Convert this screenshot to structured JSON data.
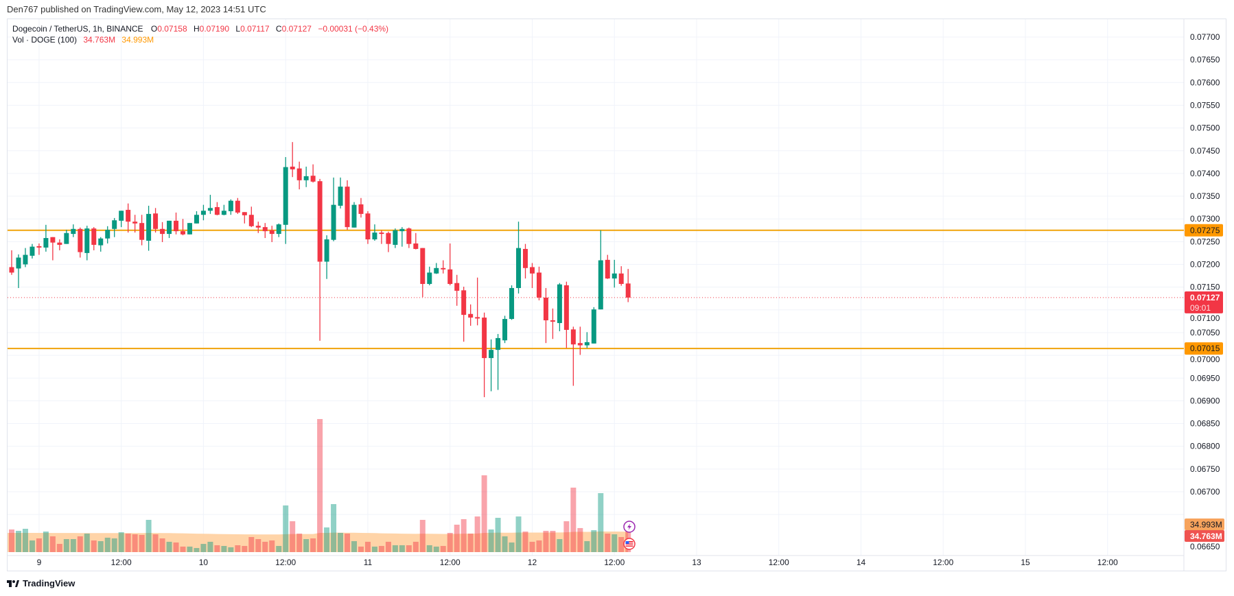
{
  "publisher_line": "Den767 published on TradingView.com, May 12, 2023 14:51 UTC",
  "legend": {
    "symbol": "Dogecoin / TetherUS, 1h, BINANCE",
    "o_label": "O",
    "o": "0.07158",
    "h_label": "H",
    "h": "0.07190",
    "l_label": "L",
    "l": "0.07117",
    "c_label": "C",
    "c": "0.07127",
    "change": "−0.00031 (−0.43%)",
    "vol_label": "Vol · DOGE (100)",
    "vol_value": "34.763M",
    "vol_ma_value": "34.993M"
  },
  "footer": {
    "brand": "TradingView",
    "logo_icon": "tradingview-logo-icon"
  },
  "colors": {
    "up": "#089981",
    "down": "#f23645",
    "level_line": "#f0a30a",
    "vol_ma_fill": "#ffcc99",
    "grid": "#f0f3fa"
  },
  "chart_data": {
    "type": "candlestick",
    "interval": "1h",
    "ylim": [
      0.0662,
      0.0774
    ],
    "grid": true,
    "y_ticks": [
      "0.07700",
      "0.07650",
      "0.07600",
      "0.07550",
      "0.07500",
      "0.07450",
      "0.07400",
      "0.07350",
      "0.07300",
      "0.07250",
      "0.07200",
      "0.07150",
      "0.07100",
      "0.07050",
      "0.07000",
      "0.06950",
      "0.06900",
      "0.06850",
      "0.06800",
      "0.06750",
      "0.06700",
      "0.06650"
    ],
    "x_ticks": [
      {
        "label": "9",
        "time": "2023-05-09 00:00"
      },
      {
        "label": "12:00",
        "time": "2023-05-09 12:00"
      },
      {
        "label": "10",
        "time": "2023-05-10 00:00"
      },
      {
        "label": "12:00",
        "time": "2023-05-10 12:00"
      },
      {
        "label": "11",
        "time": "2023-05-11 00:00"
      },
      {
        "label": "12:00",
        "time": "2023-05-11 12:00"
      },
      {
        "label": "12",
        "time": "2023-05-12 00:00"
      },
      {
        "label": "12:00",
        "time": "2023-05-12 12:00"
      },
      {
        "label": "13",
        "time": "2023-05-13 00:00"
      },
      {
        "label": "12:00",
        "time": "2023-05-13 12:00"
      },
      {
        "label": "14",
        "time": "2023-05-14 00:00"
      },
      {
        "label": "12:00",
        "time": "2023-05-14 12:00"
      },
      {
        "label": "15",
        "time": "2023-05-15 00:00"
      },
      {
        "label": "12:00",
        "time": "2023-05-15 12:00"
      }
    ],
    "horizontal_levels": [
      {
        "price": 0.07275,
        "label": "0.07275"
      },
      {
        "price": 0.07015,
        "label": "0.07015"
      }
    ],
    "last_price": {
      "price": 0.07127,
      "label": "0.07127",
      "countdown": "09:01"
    },
    "volume_labels": {
      "ma": "34.993M",
      "volume": "34.763M"
    },
    "columns": [
      "time",
      "open",
      "high",
      "low",
      "close",
      "volume_m",
      "vol_ma_m"
    ],
    "candles": [
      [
        "2023-05-08 20:00",
        0.07194,
        0.07231,
        0.07177,
        0.07182,
        38.6,
        32.8
      ],
      [
        "2023-05-08 21:00",
        0.07191,
        0.07222,
        0.07148,
        0.07215,
        36.3,
        32.8
      ],
      [
        "2023-05-08 22:00",
        0.072,
        0.07236,
        0.07194,
        0.07221,
        39.8,
        32.8
      ],
      [
        "2023-05-08 23:00",
        0.07219,
        0.07245,
        0.07213,
        0.07239,
        19.9,
        32.7
      ],
      [
        "2023-05-09 00:00",
        0.0724,
        0.07246,
        0.07221,
        0.07237,
        23.4,
        32.7
      ],
      [
        "2023-05-09 01:00",
        0.07237,
        0.07287,
        0.07228,
        0.07258,
        35.1,
        32.7
      ],
      [
        "2023-05-09 02:00",
        0.0726,
        0.0726,
        0.07209,
        0.07248,
        26.9,
        32.6
      ],
      [
        "2023-05-09 03:00",
        0.07248,
        0.07255,
        0.07231,
        0.07243,
        14.0,
        32.6
      ],
      [
        "2023-05-09 04:00",
        0.07245,
        0.07276,
        0.07245,
        0.07269,
        22.2,
        32.6
      ],
      [
        "2023-05-09 05:00",
        0.07267,
        0.07288,
        0.0726,
        0.07278,
        22.2,
        32.6
      ],
      [
        "2023-05-09 06:00",
        0.07278,
        0.07281,
        0.07215,
        0.07227,
        26.9,
        32.5
      ],
      [
        "2023-05-09 07:00",
        0.07225,
        0.07285,
        0.07209,
        0.07279,
        31.6,
        32.5
      ],
      [
        "2023-05-09 08:00",
        0.07279,
        0.07282,
        0.07231,
        0.07243,
        19.9,
        32.5
      ],
      [
        "2023-05-09 09:00",
        0.07242,
        0.0726,
        0.07228,
        0.07257,
        18.7,
        32.5
      ],
      [
        "2023-05-09 10:00",
        0.07257,
        0.07284,
        0.07246,
        0.07276,
        24.6,
        32.4
      ],
      [
        "2023-05-09 11:00",
        0.07278,
        0.07302,
        0.0726,
        0.07297,
        23.4,
        32.4
      ],
      [
        "2023-05-09 12:00",
        0.07296,
        0.07318,
        0.07282,
        0.07318,
        33.9,
        32.4
      ],
      [
        "2023-05-09 13:00",
        0.0732,
        0.07334,
        0.0727,
        0.07294,
        31.6,
        32.4
      ],
      [
        "2023-05-09 14:00",
        0.07294,
        0.07309,
        0.0727,
        0.0729,
        30.4,
        32.4
      ],
      [
        "2023-05-09 15:00",
        0.07291,
        0.07309,
        0.07242,
        0.07254,
        29.3,
        32.4
      ],
      [
        "2023-05-09 16:00",
        0.07252,
        0.07329,
        0.0723,
        0.07311,
        55.0,
        32.6
      ],
      [
        "2023-05-09 17:00",
        0.07312,
        0.07324,
        0.0727,
        0.07278,
        30.4,
        32.6
      ],
      [
        "2023-05-09 18:00",
        0.07278,
        0.07293,
        0.07249,
        0.07267,
        23.4,
        32.5
      ],
      [
        "2023-05-09 19:00",
        0.07267,
        0.07296,
        0.07258,
        0.07296,
        17.6,
        32.4
      ],
      [
        "2023-05-09 20:00",
        0.07296,
        0.07314,
        0.07266,
        0.07273,
        16.4,
        32.2
      ],
      [
        "2023-05-09 21:00",
        0.07273,
        0.073,
        0.07264,
        0.07266,
        9.4,
        32.0
      ],
      [
        "2023-05-09 22:00",
        0.07266,
        0.07291,
        0.07266,
        0.07291,
        9.4,
        31.8
      ],
      [
        "2023-05-09 23:00",
        0.0729,
        0.07317,
        0.0729,
        0.07309,
        7.0,
        31.5
      ],
      [
        "2023-05-10 00:00",
        0.07309,
        0.07331,
        0.07297,
        0.07318,
        14.0,
        31.3
      ],
      [
        "2023-05-10 01:00",
        0.07318,
        0.07353,
        0.07311,
        0.07324,
        17.6,
        31.1
      ],
      [
        "2023-05-10 02:00",
        0.07326,
        0.07337,
        0.07308,
        0.07309,
        11.7,
        30.9
      ],
      [
        "2023-05-10 03:00",
        0.07309,
        0.07331,
        0.07308,
        0.07318,
        10.5,
        30.7
      ],
      [
        "2023-05-10 04:00",
        0.07317,
        0.07343,
        0.07309,
        0.0734,
        8.2,
        30.5
      ],
      [
        "2023-05-10 05:00",
        0.0734,
        0.07346,
        0.07311,
        0.07314,
        11.7,
        30.4
      ],
      [
        "2023-05-10 06:00",
        0.07315,
        0.07315,
        0.0729,
        0.07308,
        10.5,
        30.3
      ],
      [
        "2023-05-10 07:00",
        0.07309,
        0.07327,
        0.07282,
        0.07284,
        25.7,
        30.3
      ],
      [
        "2023-05-10 08:00",
        0.07285,
        0.07294,
        0.07269,
        0.07281,
        22.2,
        30.2
      ],
      [
        "2023-05-10 09:00",
        0.07282,
        0.07291,
        0.07258,
        0.07273,
        17.6,
        30.2
      ],
      [
        "2023-05-10 10:00",
        0.07275,
        0.07285,
        0.07249,
        0.07267,
        19.9,
        30.2
      ],
      [
        "2023-05-10 11:00",
        0.07267,
        0.0729,
        0.0726,
        0.07288,
        10.5,
        30.1
      ],
      [
        "2023-05-10 12:00",
        0.07287,
        0.07436,
        0.07245,
        0.07414,
        79.6,
        30.6
      ],
      [
        "2023-05-10 13:00",
        0.07415,
        0.07469,
        0.07392,
        0.07409,
        52.7,
        30.8
      ],
      [
        "2023-05-10 14:00",
        0.07411,
        0.07426,
        0.07365,
        0.07385,
        31.6,
        30.8
      ],
      [
        "2023-05-10 15:00",
        0.07385,
        0.07415,
        0.0737,
        0.07394,
        22.2,
        30.8
      ],
      [
        "2023-05-10 16:00",
        0.07395,
        0.0742,
        0.0738,
        0.07382,
        23.4,
        30.8
      ],
      [
        "2023-05-10 17:00",
        0.07383,
        0.07388,
        0.07032,
        0.07206,
        227.0,
        32.7
      ],
      [
        "2023-05-10 18:00",
        0.07206,
        0.07264,
        0.07168,
        0.07255,
        42.1,
        32.8
      ],
      [
        "2023-05-10 19:00",
        0.07254,
        0.07391,
        0.07251,
        0.07331,
        81.9,
        33.2
      ],
      [
        "2023-05-10 20:00",
        0.07329,
        0.07391,
        0.07323,
        0.07371,
        32.8,
        33.2
      ],
      [
        "2023-05-10 21:00",
        0.07371,
        0.07385,
        0.07276,
        0.07282,
        31.6,
        33.1
      ],
      [
        "2023-05-10 22:00",
        0.07281,
        0.07337,
        0.07281,
        0.07331,
        18.7,
        33.0
      ],
      [
        "2023-05-10 23:00",
        0.07332,
        0.07346,
        0.07303,
        0.07311,
        9.4,
        32.8
      ],
      [
        "2023-05-11 00:00",
        0.07312,
        0.07317,
        0.07245,
        0.07255,
        17.6,
        32.6
      ],
      [
        "2023-05-11 01:00",
        0.07255,
        0.07288,
        0.07252,
        0.0727,
        9.4,
        32.4
      ],
      [
        "2023-05-11 02:00",
        0.0727,
        0.07275,
        0.07245,
        0.07267,
        10.5,
        32.1
      ],
      [
        "2023-05-11 03:00",
        0.07269,
        0.07272,
        0.07227,
        0.07245,
        17.6,
        31.9
      ],
      [
        "2023-05-11 04:00",
        0.07243,
        0.07279,
        0.07236,
        0.07275,
        11.7,
        31.7
      ],
      [
        "2023-05-11 05:00",
        0.07273,
        0.07282,
        0.07239,
        0.07278,
        11.7,
        31.5
      ],
      [
        "2023-05-11 06:00",
        0.07279,
        0.07281,
        0.07236,
        0.07245,
        11.7,
        31.3
      ],
      [
        "2023-05-11 07:00",
        0.07246,
        0.07269,
        0.07233,
        0.07234,
        17.6,
        31.2
      ],
      [
        "2023-05-11 08:00",
        0.07236,
        0.07236,
        0.07128,
        0.07157,
        55.0,
        31.4
      ],
      [
        "2023-05-11 09:00",
        0.07157,
        0.07195,
        0.07154,
        0.07182,
        11.7,
        31.3
      ],
      [
        "2023-05-11 10:00",
        0.0718,
        0.07203,
        0.07179,
        0.07192,
        9.4,
        31.1
      ],
      [
        "2023-05-11 11:00",
        0.07192,
        0.07209,
        0.0718,
        0.07189,
        10.5,
        31.0
      ],
      [
        "2023-05-11 12:00",
        0.07189,
        0.07246,
        0.07154,
        0.07157,
        32.8,
        31.0
      ],
      [
        "2023-05-11 13:00",
        0.07159,
        0.07177,
        0.07109,
        0.07142,
        46.8,
        31.2
      ],
      [
        "2023-05-11 14:00",
        0.07143,
        0.07151,
        0.0703,
        0.07089,
        56.2,
        31.5
      ],
      [
        "2023-05-11 15:00",
        0.07091,
        0.07112,
        0.07065,
        0.07083,
        31.6,
        31.5
      ],
      [
        "2023-05-11 16:00",
        0.07084,
        0.07171,
        0.07066,
        0.07081,
        60.8,
        31.8
      ],
      [
        "2023-05-11 17:00",
        0.07083,
        0.07094,
        0.06908,
        0.06994,
        131.0,
        32.8
      ],
      [
        "2023-05-11 18:00",
        0.06994,
        0.07035,
        0.06921,
        0.07012,
        38.6,
        32.9
      ],
      [
        "2023-05-11 19:00",
        0.07012,
        0.07047,
        0.06924,
        0.07038,
        58.5,
        33.2
      ],
      [
        "2023-05-11 20:00",
        0.07033,
        0.07087,
        0.07027,
        0.0708,
        26.9,
        33.1
      ],
      [
        "2023-05-11 21:00",
        0.0708,
        0.07154,
        0.07078,
        0.07148,
        16.4,
        33.0
      ],
      [
        "2023-05-11 22:00",
        0.07148,
        0.07294,
        0.07136,
        0.07236,
        60.8,
        33.3
      ],
      [
        "2023-05-11 23:00",
        0.07234,
        0.07245,
        0.07169,
        0.07192,
        35.1,
        33.4
      ],
      [
        "2023-05-12 00:00",
        0.07194,
        0.07203,
        0.07148,
        0.0718,
        17.6,
        33.3
      ],
      [
        "2023-05-12 01:00",
        0.07182,
        0.07195,
        0.07121,
        0.07127,
        19.9,
        33.3
      ],
      [
        "2023-05-12 02:00",
        0.07127,
        0.07148,
        0.07027,
        0.07077,
        36.3,
        33.4
      ],
      [
        "2023-05-12 03:00",
        0.07077,
        0.07103,
        0.07036,
        0.07074,
        36.3,
        33.5
      ],
      [
        "2023-05-12 04:00",
        0.07071,
        0.07159,
        0.07053,
        0.07156,
        22.2,
        33.5
      ],
      [
        "2023-05-12 05:00",
        0.07154,
        0.07162,
        0.07016,
        0.07056,
        52.7,
        33.8
      ],
      [
        "2023-05-12 06:00",
        0.07057,
        0.07063,
        0.06933,
        0.07024,
        110.0,
        34.5
      ],
      [
        "2023-05-12 07:00",
        0.07027,
        0.07063,
        0.07001,
        0.07022,
        41.0,
        34.6
      ],
      [
        "2023-05-12 08:00",
        0.07022,
        0.07051,
        0.07016,
        0.07029,
        18.7,
        34.5
      ],
      [
        "2023-05-12 09:00",
        0.07026,
        0.07106,
        0.07026,
        0.07101,
        37.4,
        34.6
      ],
      [
        "2023-05-12 10:00",
        0.07101,
        0.07275,
        0.07101,
        0.07209,
        100.6,
        35.2
      ],
      [
        "2023-05-12 11:00",
        0.0721,
        0.07221,
        0.07168,
        0.07169,
        31.6,
        35.1
      ],
      [
        "2023-05-12 12:00",
        0.07169,
        0.0721,
        0.07149,
        0.0718,
        30.4,
        35.1
      ],
      [
        "2023-05-12 13:00",
        0.0718,
        0.07196,
        0.07153,
        0.07157,
        25.7,
        35.0
      ],
      [
        "2023-05-12 14:00",
        0.07158,
        0.0719,
        0.07117,
        0.07127,
        34.763,
        34.993
      ]
    ]
  }
}
